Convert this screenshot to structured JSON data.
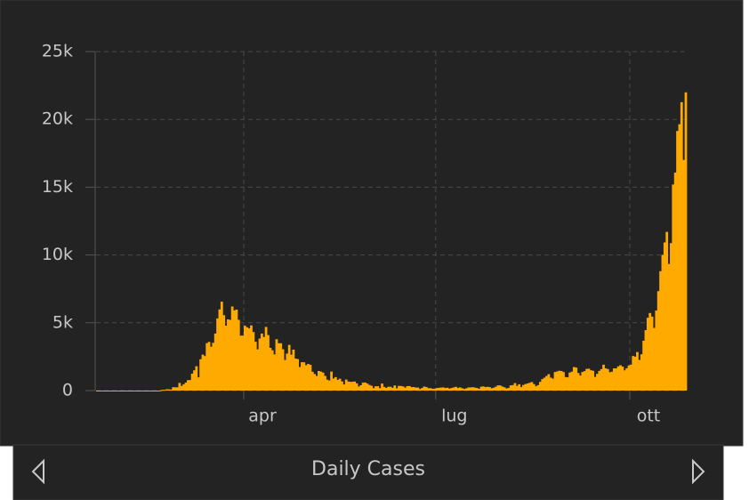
{
  "chart_data": {
    "type": "bar",
    "title": "Daily Cases",
    "color": "#ffaa00",
    "grid": true,
    "ylim": [
      0,
      25000
    ],
    "yticks": [
      0,
      {
        "value": 5000,
        "label": "5k"
      },
      {
        "value": 10000,
        "label": "10k"
      },
      {
        "value": 15000,
        "label": "15k"
      },
      {
        "value": 20000,
        "label": "20k"
      },
      {
        "value": 25000,
        "label": "25k"
      }
    ],
    "categories": [
      null,
      null,
      null,
      null,
      null,
      null,
      null,
      null,
      null,
      null,
      null,
      null,
      null,
      null,
      null,
      null,
      null,
      null,
      null,
      null,
      null,
      null,
      null,
      null,
      null,
      null,
      null,
      null,
      null,
      null,
      null,
      null,
      null,
      null,
      null,
      null,
      null,
      null,
      null,
      null,
      null,
      null,
      null,
      null,
      null,
      null,
      null,
      null,
      null,
      null,
      null,
      null,
      null,
      null,
      null,
      null,
      null,
      null,
      null,
      null,
      null,
      null,
      null,
      null,
      null,
      null,
      null,
      null,
      null,
      null,
      "apr",
      null,
      null,
      null,
      null,
      null,
      null,
      null,
      null,
      null,
      null,
      null,
      null,
      null,
      null,
      null,
      null,
      null,
      null,
      null,
      null,
      null,
      null,
      null,
      null,
      null,
      null,
      null,
      null,
      null,
      null,
      null,
      null,
      null,
      null,
      null,
      null,
      null,
      null,
      null,
      null,
      null,
      null,
      null,
      null,
      null,
      null,
      null,
      null,
      null,
      null,
      null,
      null,
      null,
      null,
      null,
      null,
      null,
      null,
      null,
      null,
      null,
      null,
      null,
      null,
      null,
      null,
      null,
      null,
      null,
      null,
      null,
      null,
      null,
      null,
      null,
      null,
      null,
      null,
      null,
      null,
      null,
      null,
      null,
      null,
      null,
      null,
      null,
      null,
      null,
      null,
      "lug",
      null,
      null,
      null,
      null,
      null,
      null,
      null,
      null,
      null,
      null,
      null,
      null,
      null,
      null,
      null,
      null,
      null,
      null,
      null,
      null,
      null,
      null,
      null,
      null,
      null,
      null,
      null,
      null,
      null,
      null,
      null,
      null,
      null,
      null,
      null,
      null,
      null,
      null,
      null,
      null,
      null,
      null,
      null,
      null,
      null,
      null,
      null,
      null,
      null,
      null,
      null,
      null,
      null,
      null,
      null,
      null,
      null,
      null,
      null,
      null,
      null,
      null,
      null,
      null,
      null,
      null,
      null,
      null,
      null,
      null,
      null,
      null,
      null,
      null,
      null,
      null,
      null,
      null,
      null,
      null,
      null,
      null,
      null,
      null,
      null,
      null,
      null,
      null,
      null,
      null,
      null,
      "ott",
      null,
      null,
      null,
      null,
      null,
      null,
      null,
      null,
      null,
      null,
      null,
      null,
      null,
      null,
      null,
      null,
      null,
      null,
      null,
      null,
      null,
      null,
      null,
      null,
      null,
      null
    ],
    "values": [
      0,
      0,
      0,
      0,
      0,
      0,
      0,
      0,
      0,
      3,
      0,
      0,
      0,
      0,
      0,
      0,
      0,
      0,
      0,
      0,
      0,
      0,
      0,
      0,
      0,
      0,
      0,
      0,
      0,
      0,
      14,
      62,
      53,
      97,
      93,
      78,
      250,
      238,
      240,
      566,
      342,
      466,
      587,
      769,
      778,
      1247,
      1492,
      1797,
      977,
      2313,
      2651,
      2547,
      3497,
      3590,
      3233,
      3526,
      4207,
      5322,
      5986,
      6557,
      5560,
      4789,
      5249,
      5210,
      6203,
      5909,
      5974,
      5217,
      4050,
      4053,
      4782,
      4668,
      4585,
      4805,
      4316,
      3599,
      3039,
      3836,
      4204,
      3951,
      4694,
      4092,
      3153,
      2972,
      2667,
      3786,
      3493,
      3491,
      3047,
      2256,
      2729,
      3370,
      2646,
      3021,
      2357,
      2324,
      1739,
      2091,
      2086,
      1872,
      1965,
      1900,
      1389,
      1221,
      1075,
      1444,
      1401,
      1327,
      1083,
      802,
      744,
      1402,
      888,
      992,
      789,
      875,
      675,
      451,
      813,
      665,
      642,
      652,
      669,
      531,
      300,
      397,
      584,
      593,
      516,
      416,
      355,
      178,
      318,
      321,
      177,
      518,
      270,
      197,
      280,
      283,
      202,
      379,
      163,
      346,
      338,
      301,
      210,
      329,
      333,
      251,
      262,
      224,
      221,
      113,
      190,
      296,
      259,
      175,
      174,
      126,
      142,
      187,
      201,
      223,
      235,
      192,
      208,
      138,
      193,
      229,
      276,
      188,
      234,
      169,
      114,
      162,
      230,
      233,
      249,
      219,
      190,
      129,
      282,
      306,
      252,
      275,
      255,
      170,
      212,
      289,
      386,
      379,
      295,
      239,
      159,
      190,
      384,
      402,
      552,
      347,
      463,
      259,
      412,
      481,
      523,
      574,
      629,
      479,
      320,
      403,
      642,
      845,
      947,
      1071,
      1210,
      953,
      878,
      1367,
      1411,
      1462,
      1444,
      1365,
      996,
      978,
      1326,
      1397,
      1733,
      1695,
      1297,
      1108,
      1370,
      1434,
      1597,
      1616,
      1501,
      1458,
      1008,
      1229,
      1452,
      1585,
      1907,
      1638,
      1587,
      1350,
      1392,
      1640,
      1634,
      1786,
      1869,
      1766,
      1494,
      1648,
      1851,
      1912,
      2548,
      2499,
      2844,
      2257,
      2677,
      3678,
      4458,
      5372,
      5724,
      5456,
      4619,
      5901,
      7332,
      8804,
      10010,
      10925,
      11705,
      9338,
      10874,
      15199,
      16079,
      19143,
      19644,
      21273,
      17012,
      21994
    ]
  }
}
